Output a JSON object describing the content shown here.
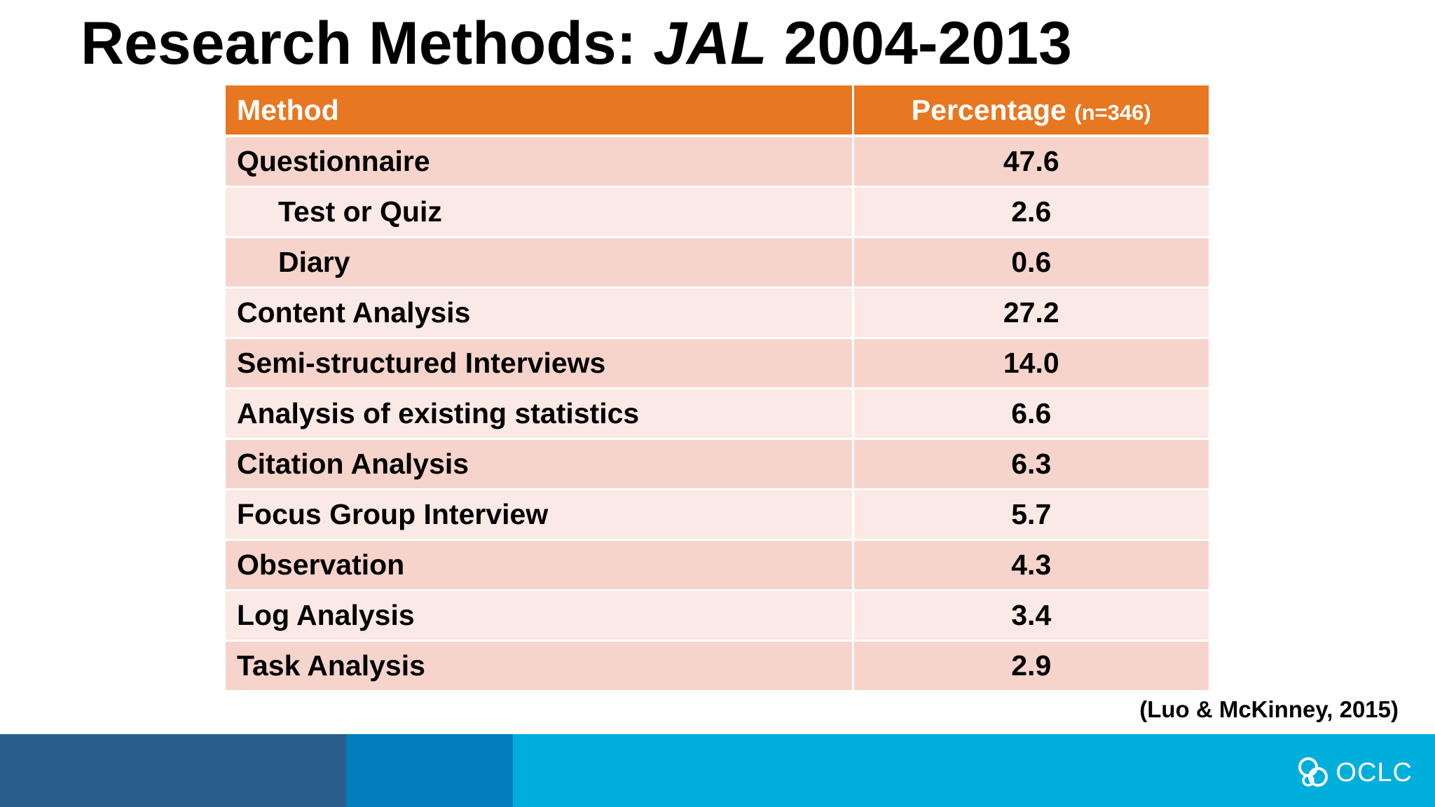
{
  "title": {
    "prefix": "Research Methods: ",
    "italic": "JAL",
    "suffix": " 2004-2013"
  },
  "table": {
    "header": {
      "method": "Method",
      "percentage": "Percentage",
      "n_note": "(n=346)"
    },
    "rows": [
      {
        "method": "Questionnaire",
        "value": "47.6",
        "indent": false
      },
      {
        "method": "Test or Quiz",
        "value": "2.6",
        "indent": true
      },
      {
        "method": "Diary",
        "value": "0.6",
        "indent": true
      },
      {
        "method": "Content Analysis",
        "value": "27.2",
        "indent": false
      },
      {
        "method": "Semi-structured Interviews",
        "value": "14.0",
        "indent": false
      },
      {
        "method": "Analysis of existing statistics",
        "value": "6.6",
        "indent": false
      },
      {
        "method": "Citation Analysis",
        "value": "6.3",
        "indent": false
      },
      {
        "method": "Focus Group Interview",
        "value": "5.7",
        "indent": false
      },
      {
        "method": "Observation",
        "value": "4.3",
        "indent": false
      },
      {
        "method": "Log Analysis",
        "value": "3.4",
        "indent": false
      },
      {
        "method": "Task Analysis",
        "value": "2.9",
        "indent": false
      }
    ]
  },
  "citation": "(Luo & McKinney, 2015)",
  "footer": {
    "logo_text": "OCLC",
    "logo_icon": "oclc-logo-icon",
    "colors": [
      "#2b5d8c",
      "#007dba",
      "#00aedb"
    ]
  },
  "colors": {
    "header_bg": "#e87722",
    "row_dark": "#f6d4cb",
    "row_light": "#fbe9e6"
  }
}
